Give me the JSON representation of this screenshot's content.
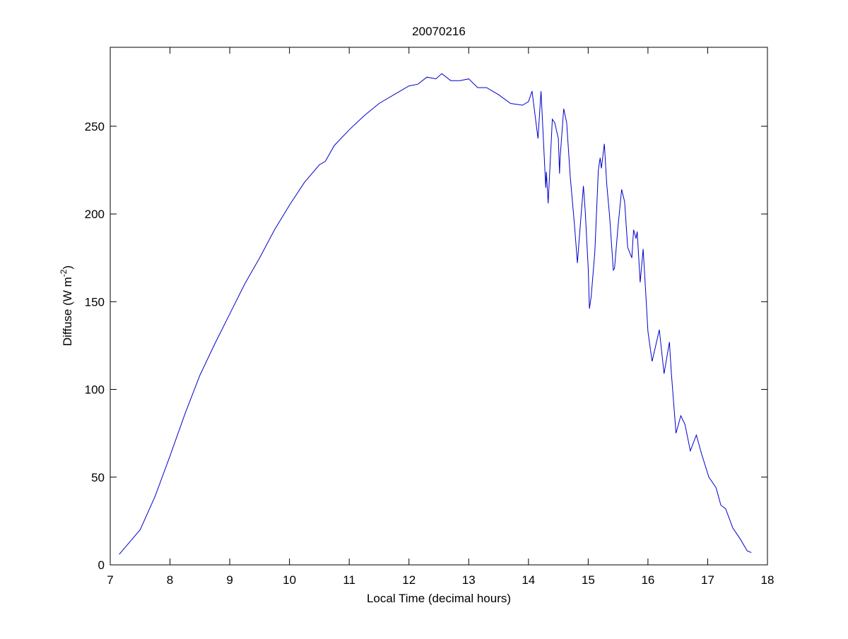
{
  "chart_data": {
    "type": "line",
    "title": "20070216",
    "xlabel": "Local Time (decimal hours)",
    "ylabel_main": "Diffuse (W m",
    "ylabel_sup": "-2",
    "ylabel_close": ")",
    "xlim": [
      7,
      18
    ],
    "ylim": [
      0,
      295
    ],
    "xticks": [
      7,
      8,
      9,
      10,
      11,
      12,
      13,
      14,
      15,
      16,
      17,
      18
    ],
    "yticks": [
      0,
      50,
      100,
      150,
      200,
      250
    ],
    "grid": false,
    "line_color": "#0000cc",
    "series": [
      {
        "name": "Diffuse",
        "x": [
          7.15,
          7.3,
          7.5,
          7.75,
          8.0,
          8.25,
          8.5,
          8.75,
          9.0,
          9.25,
          9.5,
          9.75,
          10.0,
          10.25,
          10.5,
          10.6,
          10.75,
          11.0,
          11.25,
          11.5,
          11.75,
          12.0,
          12.15,
          12.3,
          12.45,
          12.55,
          12.7,
          12.85,
          13.0,
          13.15,
          13.3,
          13.5,
          13.7,
          13.9,
          14.0,
          14.06,
          14.16,
          14.21,
          14.29,
          14.3,
          14.33,
          14.4,
          14.44,
          14.5,
          14.52,
          14.53,
          14.59,
          14.64,
          14.7,
          14.77,
          14.82,
          14.85,
          14.92,
          14.95,
          15.0,
          15.02,
          15.05,
          15.11,
          15.17,
          15.2,
          15.22,
          15.27,
          15.31,
          15.36,
          15.42,
          15.44,
          15.5,
          15.56,
          15.61,
          15.66,
          15.73,
          15.76,
          15.8,
          15.82,
          15.87,
          15.92,
          15.96,
          16.0,
          16.07,
          16.19,
          16.27,
          16.36,
          16.39,
          16.47,
          16.55,
          16.62,
          16.71,
          16.81,
          16.9,
          17.02,
          17.14,
          17.22,
          17.3,
          17.42,
          17.54,
          17.66,
          17.73
        ],
        "y": [
          6,
          12,
          20,
          39,
          62,
          86,
          108,
          126,
          143,
          160,
          175,
          191,
          205,
          218,
          228,
          230,
          239,
          248,
          256,
          263,
          268,
          273,
          274,
          278,
          277,
          280,
          276,
          276,
          277,
          272,
          272,
          268,
          263,
          262,
          264,
          270,
          243,
          270,
          215,
          224,
          206,
          254,
          252,
          243,
          223,
          232,
          260,
          252,
          221,
          194,
          172,
          186,
          216,
          202,
          169,
          146,
          153,
          178,
          225,
          232,
          226,
          240,
          217,
          198,
          168,
          169,
          193,
          214,
          207,
          181,
          175,
          191,
          186,
          190,
          161,
          180,
          157,
          133,
          116,
          134,
          109,
          127,
          110,
          75,
          85,
          80,
          65,
          74,
          63,
          50,
          44,
          34,
          32,
          21,
          15,
          8,
          7
        ]
      }
    ]
  }
}
